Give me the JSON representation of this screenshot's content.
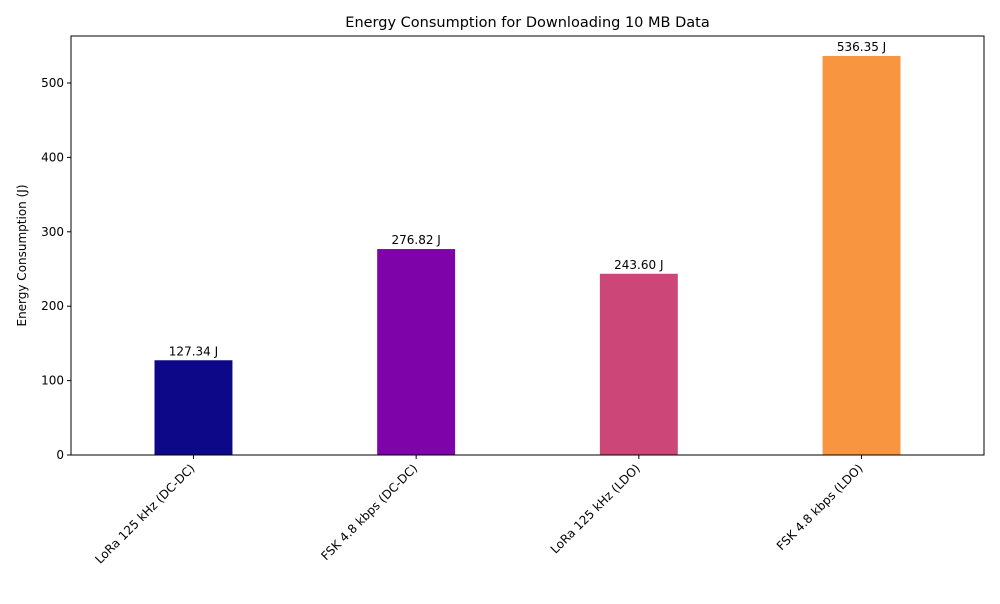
{
  "chart_data": {
    "type": "bar",
    "title": "Energy Consumption for Downloading 10 MB Data",
    "xlabel": "",
    "ylabel": "Energy Consumption (J)",
    "categories": [
      "LoRa 125 kHz (DC-DC)",
      "FSK 4.8 kbps (DC-DC)",
      "LoRa 125 kHz (LDO)",
      "FSK 4.8 kbps (LDO)"
    ],
    "values": [
      127.34,
      276.82,
      243.6,
      536.35
    ],
    "data_labels": [
      "127.34 J",
      "276.82 J",
      "243.60 J",
      "536.35 J"
    ],
    "colors": [
      "#0d0887",
      "#7e03a8",
      "#cc4778",
      "#f89540"
    ],
    "ylim": [
      0,
      563.17
    ],
    "yticks": [
      0,
      100,
      200,
      300,
      400,
      500
    ],
    "grid": false,
    "legend": "none"
  }
}
